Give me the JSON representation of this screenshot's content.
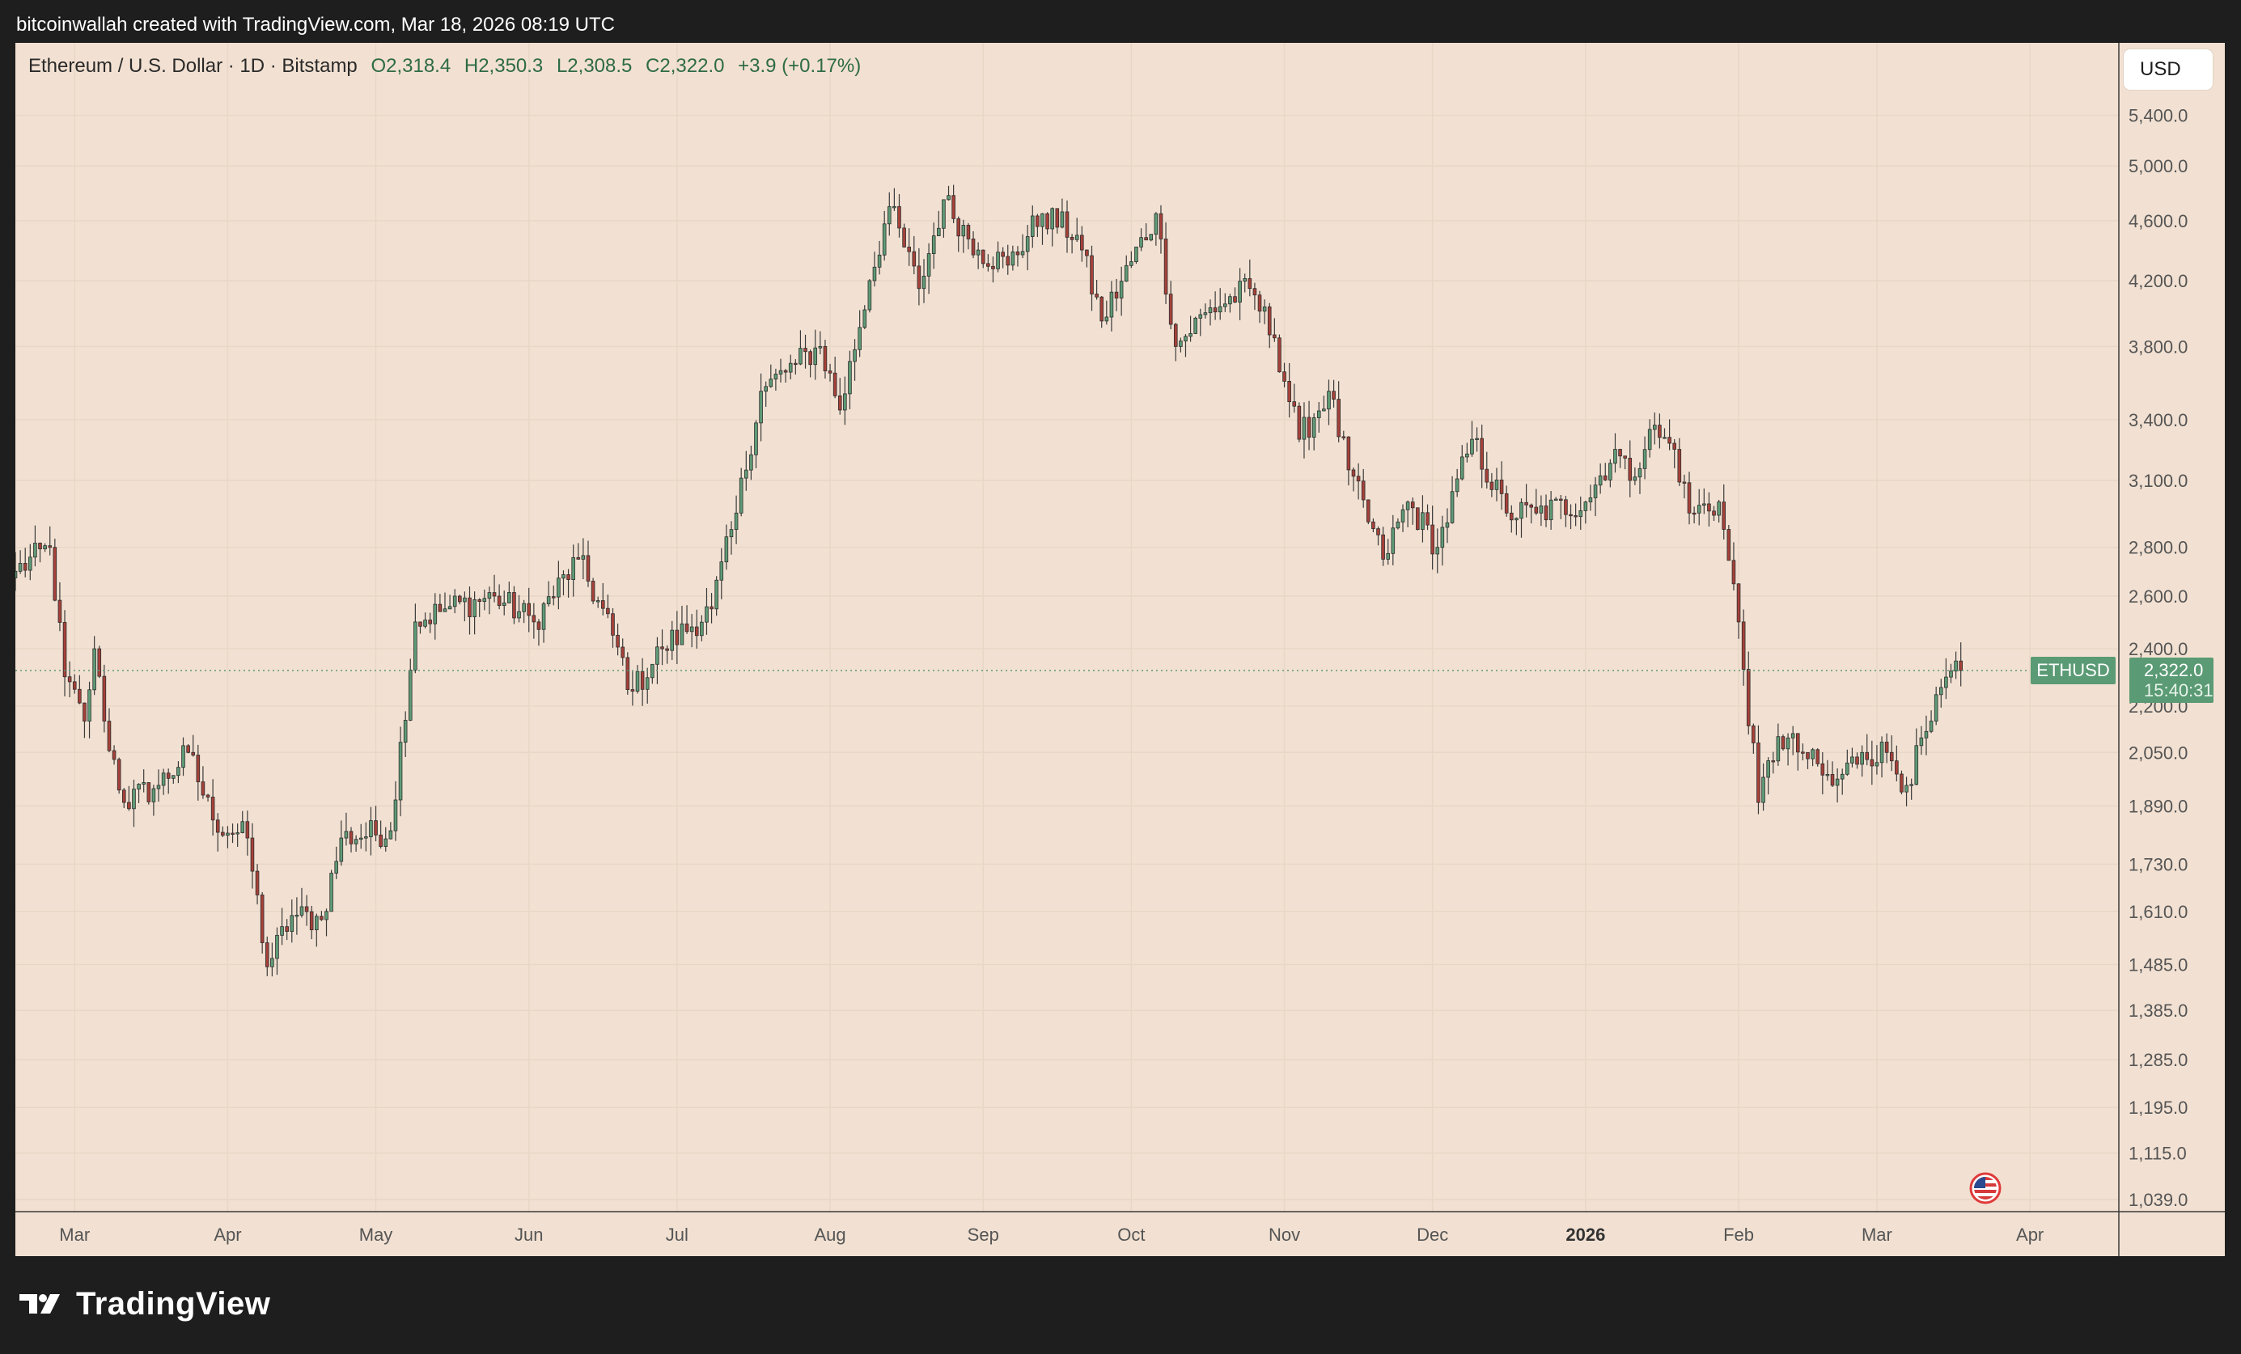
{
  "caption": "bitcoinwallah created with TradingView.com, Mar 18, 2026 08:19 UTC",
  "legend": {
    "symbol": "Ethereum / U.S. Dollar · 1D · Bitstamp",
    "open": "O2,318.4",
    "high": "H2,350.3",
    "low": "L2,308.5",
    "close": "C2,322.0",
    "change": "+3.9 (+0.17%)"
  },
  "currency_button": "USD",
  "last_price": {
    "symbol_tag": "ETHUSD",
    "price": "2,322.0",
    "countdown": "15:40:31"
  },
  "flag_icon": "us-flag-icon",
  "brand": "TradingView",
  "colors": {
    "background": "#f2e1d2",
    "up": "#5e9b76",
    "down": "#a6413a",
    "last_price": "#5a9a74",
    "axis_text": "#555555"
  },
  "chart_data": {
    "type": "candlestick",
    "title": "Ethereum / U.S. Dollar · 1D · Bitstamp",
    "scale": "log",
    "ylim": [
      1020,
      5600
    ],
    "xlim": [
      "2025-02-17",
      "2026-04-19"
    ],
    "grid": true,
    "last_price": 2322.0,
    "y_ticks": [
      5400,
      5000,
      4600,
      4200,
      3800,
      3400,
      3100,
      2800,
      2600,
      2400,
      2200,
      2050,
      1890,
      1730,
      1610,
      1485,
      1385,
      1285,
      1195,
      1115,
      1039
    ],
    "y_tick_labels": [
      "5,400.0",
      "5,000.0",
      "4,600.0",
      "4,200.0",
      "3,800.0",
      "3,400.0",
      "3,100.0",
      "2,800.0",
      "2,600.0",
      "2,400.0",
      "2,200.0",
      "2,050.0",
      "1,890.0",
      "1,730.0",
      "1,610.0",
      "1,485.0",
      "1,385.0",
      "1,285.0",
      "1,195.0",
      "1,115.0",
      "1,039.0"
    ],
    "x_ticks": [
      {
        "date": "2025-03-01",
        "label": "Mar",
        "bold": false
      },
      {
        "date": "2025-04-01",
        "label": "Apr",
        "bold": false
      },
      {
        "date": "2025-05-01",
        "label": "May",
        "bold": false
      },
      {
        "date": "2025-06-01",
        "label": "Jun",
        "bold": false
      },
      {
        "date": "2025-07-01",
        "label": "Jul",
        "bold": false
      },
      {
        "date": "2025-08-01",
        "label": "Aug",
        "bold": false
      },
      {
        "date": "2025-09-01",
        "label": "Sep",
        "bold": false
      },
      {
        "date": "2025-10-01",
        "label": "Oct",
        "bold": false
      },
      {
        "date": "2025-11-01",
        "label": "Nov",
        "bold": false
      },
      {
        "date": "2025-12-01",
        "label": "Dec",
        "bold": false
      },
      {
        "date": "2026-01-01",
        "label": "2026",
        "bold": true
      },
      {
        "date": "2026-02-01",
        "label": "Feb",
        "bold": false
      },
      {
        "date": "2026-03-01",
        "label": "Mar",
        "bold": false
      },
      {
        "date": "2026-04-01",
        "label": "Apr",
        "bold": false
      }
    ],
    "close_anchors": [
      [
        "2025-02-17",
        2700
      ],
      [
        "2025-02-24",
        2800
      ],
      [
        "2025-02-27",
        2300
      ],
      [
        "2025-03-03",
        2150
      ],
      [
        "2025-03-05",
        2400
      ],
      [
        "2025-03-07",
        2150
      ],
      [
        "2025-03-11",
        1900
      ],
      [
        "2025-03-18",
        1950
      ],
      [
        "2025-03-24",
        2050
      ],
      [
        "2025-03-29",
        1850
      ],
      [
        "2025-04-05",
        1800
      ],
      [
        "2025-04-09",
        1480
      ],
      [
        "2025-04-14",
        1600
      ],
      [
        "2025-04-20",
        1590
      ],
      [
        "2025-04-24",
        1800
      ],
      [
        "2025-05-04",
        1820
      ],
      [
        "2025-05-09",
        2500
      ],
      [
        "2025-05-15",
        2550
      ],
      [
        "2025-05-25",
        2600
      ],
      [
        "2025-06-02",
        2500
      ],
      [
        "2025-06-11",
        2750
      ],
      [
        "2025-06-18",
        2450
      ],
      [
        "2025-06-22",
        2250
      ],
      [
        "2025-06-28",
        2400
      ],
      [
        "2025-07-08",
        2550
      ],
      [
        "2025-07-13",
        2950
      ],
      [
        "2025-07-18",
        3550
      ],
      [
        "2025-07-25",
        3700
      ],
      [
        "2025-07-30",
        3800
      ],
      [
        "2025-08-03",
        3450
      ],
      [
        "2025-08-09",
        4200
      ],
      [
        "2025-08-13",
        4700
      ],
      [
        "2025-08-19",
        4150
      ],
      [
        "2025-08-24",
        4750
      ],
      [
        "2025-08-31",
        4400
      ],
      [
        "2025-09-06",
        4300
      ],
      [
        "2025-09-13",
        4650
      ],
      [
        "2025-09-20",
        4500
      ],
      [
        "2025-09-25",
        3950
      ],
      [
        "2025-10-06",
        4650
      ],
      [
        "2025-10-10",
        3800
      ],
      [
        "2025-10-16",
        4000
      ],
      [
        "2025-10-25",
        4150
      ],
      [
        "2025-10-30",
        3850
      ],
      [
        "2025-11-04",
        3300
      ],
      [
        "2025-11-10",
        3550
      ],
      [
        "2025-11-14",
        3150
      ],
      [
        "2025-11-21",
        2750
      ],
      [
        "2025-11-26",
        3000
      ],
      [
        "2025-12-02",
        2800
      ],
      [
        "2025-12-09",
        3300
      ],
      [
        "2025-12-16",
        2950
      ],
      [
        "2025-12-22",
        2950
      ],
      [
        "2026-01-01",
        3000
      ],
      [
        "2026-01-07",
        3250
      ],
      [
        "2026-01-10",
        3100
      ],
      [
        "2026-01-14",
        3350
      ],
      [
        "2026-01-19",
        3250
      ],
      [
        "2026-01-22",
        2950
      ],
      [
        "2026-01-28",
        3000
      ],
      [
        "2026-02-01",
        2500
      ],
      [
        "2026-02-05",
        1900
      ],
      [
        "2026-02-09",
        2100
      ],
      [
        "2026-02-14",
        2050
      ],
      [
        "2026-02-20",
        1950
      ],
      [
        "2026-02-26",
        2050
      ],
      [
        "2026-03-03",
        2050
      ],
      [
        "2026-03-07",
        1950
      ],
      [
        "2026-03-12",
        2150
      ],
      [
        "2026-03-16",
        2320
      ],
      [
        "2026-03-18",
        2322
      ]
    ]
  }
}
